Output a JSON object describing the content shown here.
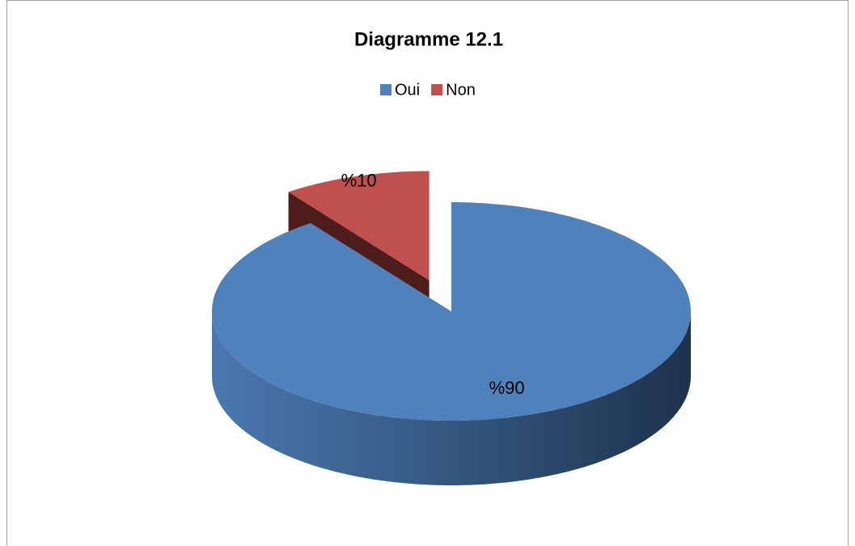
{
  "chart_data": {
    "type": "pie",
    "title": "Diagramme 12.1",
    "categories": [
      "Oui",
      "Non"
    ],
    "values": [
      90,
      10
    ],
    "value_labels": [
      "%90",
      "%10"
    ],
    "colors": [
      "#4f81bd",
      "#c0504d"
    ],
    "legend": "top"
  }
}
